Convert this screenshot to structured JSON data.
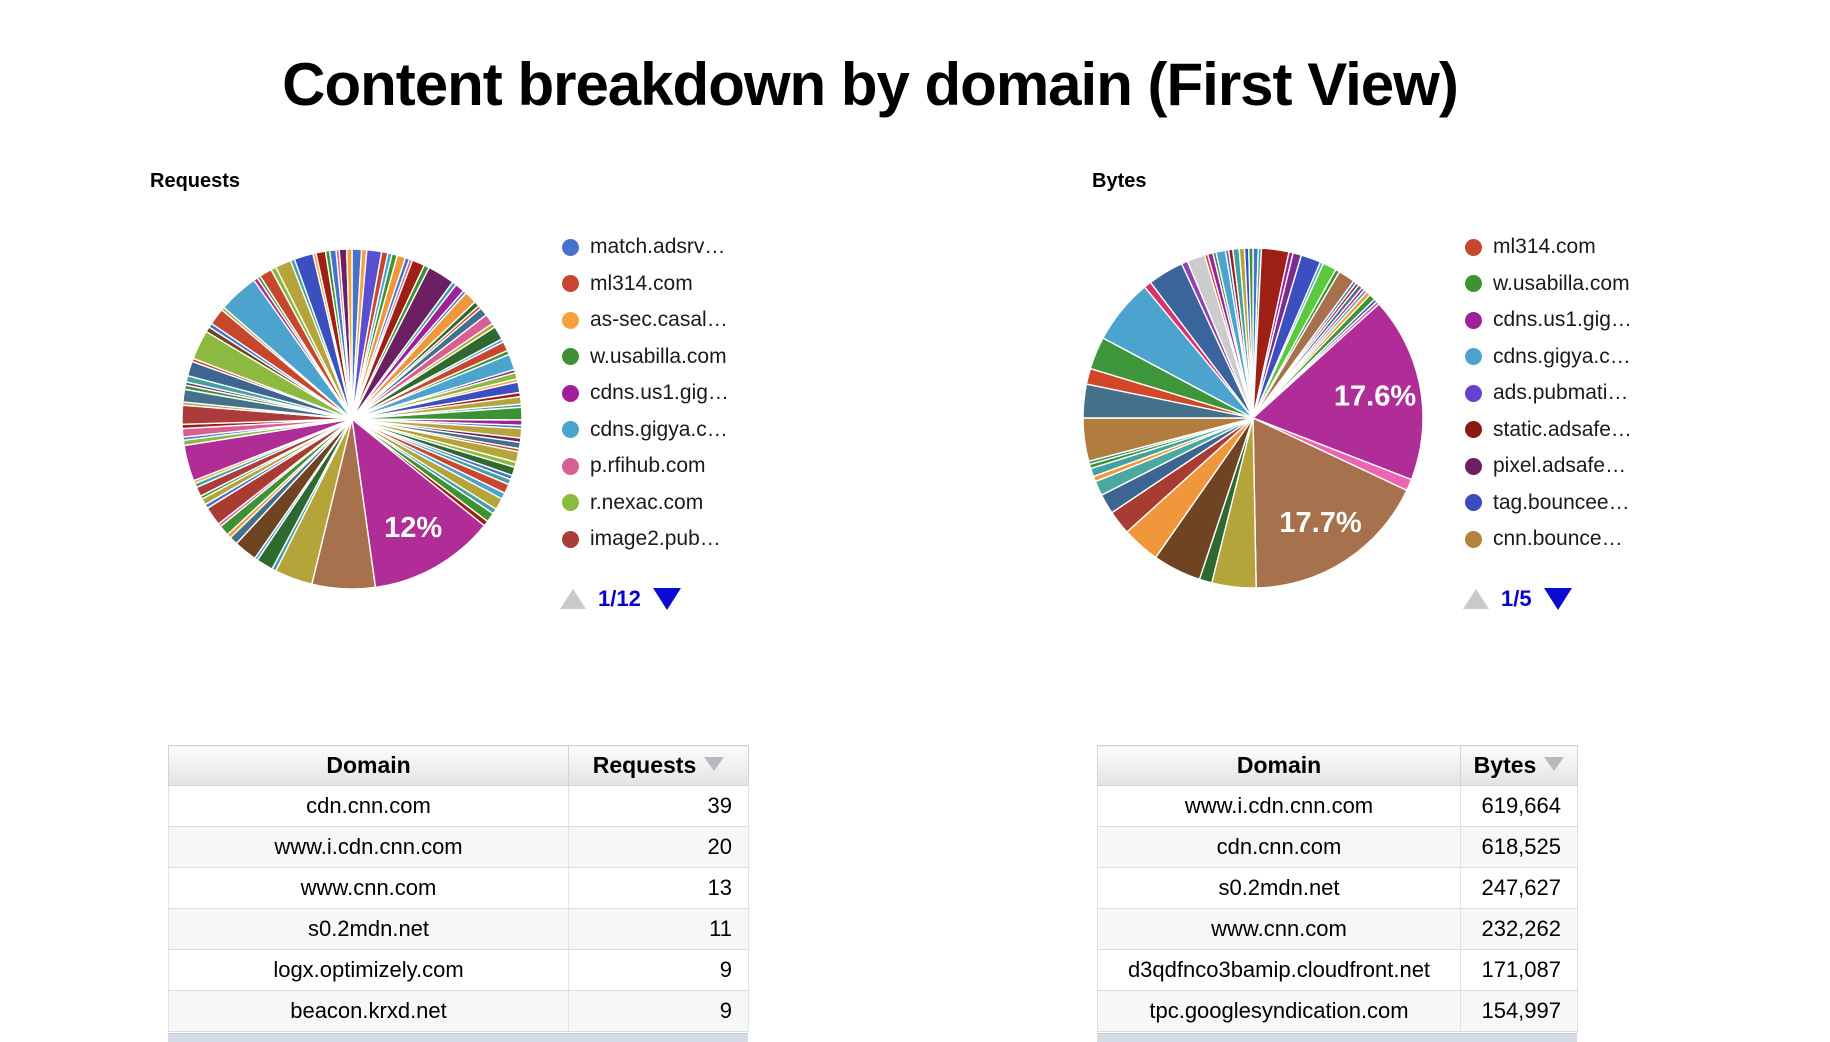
{
  "page_title": "Content breakdown by domain (First View)",
  "chart_data": [
    {
      "type": "pie",
      "title": "Requests",
      "legend_position": "right",
      "pagination": "1/12",
      "legend": [
        {
          "label": "match.adsrv…",
          "color": "#4673C9"
        },
        {
          "label": "ml314.com",
          "color": "#C6472E"
        },
        {
          "label": "as-sec.casal…",
          "color": "#F5A23C"
        },
        {
          "label": "w.usabilla.com",
          "color": "#3D9334"
        },
        {
          "label": "cdns.us1.gig…",
          "color": "#A02099"
        },
        {
          "label": "cdns.gigya.c…",
          "color": "#4BA3CE"
        },
        {
          "label": "p.rfihub.com",
          "color": "#D85E93"
        },
        {
          "label": "r.nexac.com",
          "color": "#8CBA41"
        },
        {
          "label": "image2.pub…",
          "color": "#AC3C3C"
        }
      ],
      "labeled_values": [
        {
          "label": "12%",
          "value": 12.0,
          "color": "#B02C96"
        }
      ],
      "slices": [
        [
          0.9,
          "#4673C9"
        ],
        [
          0.5,
          "#F5A23C"
        ],
        [
          1.4,
          "#5A4FD0"
        ],
        [
          0.6,
          "#C6472E"
        ],
        [
          0.4,
          "#4BA3CE"
        ],
        [
          0.5,
          "#3D9334"
        ],
        [
          0.8,
          "#F0973B"
        ],
        [
          0.4,
          "#4673C9"
        ],
        [
          0.3,
          "#D85E93"
        ],
        [
          1.2,
          "#9E1F14"
        ],
        [
          0.5,
          "#3D9334"
        ],
        [
          2.6,
          "#6C2063"
        ],
        [
          0.4,
          "#45A1A0"
        ],
        [
          0.9,
          "#A02099"
        ],
        [
          0.3,
          "#4673C9"
        ],
        [
          1.2,
          "#F0973B"
        ],
        [
          0.5,
          "#2E6930"
        ],
        [
          0.3,
          "#C6472E"
        ],
        [
          0.8,
          "#44708C"
        ],
        [
          1.0,
          "#D85E93"
        ],
        [
          0.4,
          "#B5A439"
        ],
        [
          1.3,
          "#2E6930"
        ],
        [
          0.3,
          "#4BA3CE"
        ],
        [
          0.9,
          "#C6472E"
        ],
        [
          0.4,
          "#3D9334"
        ],
        [
          1.5,
          "#4BA3CE"
        ],
        [
          0.3,
          "#7B2D8E"
        ],
        [
          0.6,
          "#8CBA41"
        ],
        [
          0.3,
          "#F5A23C"
        ],
        [
          1.0,
          "#3B4FC0"
        ],
        [
          0.4,
          "#9E1F14"
        ],
        [
          0.7,
          "#B5A439"
        ],
        [
          0.3,
          "#45A1A0"
        ],
        [
          1.2,
          "#3D9334"
        ],
        [
          0.5,
          "#A02099"
        ],
        [
          0.3,
          "#4673C9"
        ],
        [
          0.9,
          "#B5A439"
        ],
        [
          0.4,
          "#6C2063"
        ],
        [
          0.6,
          "#44708C"
        ],
        [
          0.3,
          "#C6472E"
        ],
        [
          1.0,
          "#B5A439"
        ],
        [
          0.5,
          "#8CBA41"
        ],
        [
          0.8,
          "#2E6930"
        ],
        [
          0.4,
          "#4673C9"
        ],
        [
          0.5,
          "#45A1A0"
        ],
        [
          0.9,
          "#C6472E"
        ],
        [
          0.6,
          "#4BA3CE"
        ],
        [
          1.1,
          "#B5A439"
        ],
        [
          0.5,
          "#45A1A0"
        ],
        [
          0.9,
          "#3D9334"
        ],
        [
          0.5,
          "#9E1F14"
        ],
        [
          12.0,
          "#B02C96",
          "12%"
        ],
        [
          6.0,
          "#A6714C"
        ],
        [
          3.6,
          "#B5A439"
        ],
        [
          0.4,
          "#45A1A0"
        ],
        [
          1.6,
          "#2E6930"
        ],
        [
          0.3,
          "#4BA3CE"
        ],
        [
          2.2,
          "#6E4423"
        ],
        [
          0.8,
          "#44708C"
        ],
        [
          0.4,
          "#F0973B"
        ],
        [
          1.0,
          "#3D9334"
        ],
        [
          0.3,
          "#D85E93"
        ],
        [
          1.8,
          "#A83C32"
        ],
        [
          0.4,
          "#4673C9"
        ],
        [
          0.6,
          "#B5A439"
        ],
        [
          0.3,
          "#3D9334"
        ],
        [
          0.9,
          "#AC3C3C"
        ],
        [
          0.4,
          "#45A1A0"
        ],
        [
          0.3,
          "#F5A23C"
        ],
        [
          3.4,
          "#B02C96"
        ],
        [
          0.5,
          "#8CBA41"
        ],
        [
          0.3,
          "#4673C9"
        ],
        [
          0.8,
          "#D85E93"
        ],
        [
          0.4,
          "#9E1F14"
        ],
        [
          1.8,
          "#AC3C3C"
        ],
        [
          0.3,
          "#B5A439"
        ],
        [
          1.2,
          "#44708C"
        ],
        [
          0.4,
          "#3D9334"
        ],
        [
          0.3,
          "#7B2D8E"
        ],
        [
          0.6,
          "#45A1A0"
        ],
        [
          1.4,
          "#3C6591"
        ],
        [
          0.3,
          "#C6472E"
        ],
        [
          2.8,
          "#8CBA41"
        ],
        [
          0.5,
          "#6E4423"
        ],
        [
          0.4,
          "#4673C9"
        ],
        [
          1.6,
          "#C6472E"
        ],
        [
          0.3,
          "#B5A439"
        ],
        [
          3.8,
          "#4BA3CE"
        ],
        [
          0.4,
          "#B02C96"
        ],
        [
          0.3,
          "#3D9334"
        ],
        [
          1.2,
          "#C6472E"
        ],
        [
          0.5,
          "#8CBA41"
        ],
        [
          1.5,
          "#B5A439"
        ],
        [
          0.4,
          "#45A1A0"
        ],
        [
          1.8,
          "#3B4FC0"
        ],
        [
          0.3,
          "#F5A23C"
        ],
        [
          0.9,
          "#9E1F14"
        ],
        [
          0.4,
          "#3D9334"
        ],
        [
          0.6,
          "#4673C9"
        ],
        [
          0.3,
          "#D85E93"
        ],
        [
          0.7,
          "#6C2063"
        ],
        [
          0.5,
          "#F5A23C"
        ]
      ]
    },
    {
      "type": "pie",
      "title": "Bytes",
      "legend_position": "right",
      "pagination": "1/5",
      "legend": [
        {
          "label": "ml314.com",
          "color": "#C6472E"
        },
        {
          "label": "w.usabilla.com",
          "color": "#3D9334"
        },
        {
          "label": "cdns.us1.gig…",
          "color": "#A02099"
        },
        {
          "label": "cdns.gigya.c…",
          "color": "#4BA3CE"
        },
        {
          "label": "ads.pubmati…",
          "color": "#6742D0"
        },
        {
          "label": "static.adsafe…",
          "color": "#8C180F"
        },
        {
          "label": "pixel.adsafe…",
          "color": "#6C2063"
        },
        {
          "label": "tag.bouncee…",
          "color": "#3A4CBE"
        },
        {
          "label": "cnn.bounce…",
          "color": "#B5823C"
        }
      ],
      "labeled_values": [
        {
          "label": "17.6%",
          "value": 17.6,
          "color": "#B02C96"
        },
        {
          "label": "17.7%",
          "value": 17.7,
          "color": "#A6714C"
        }
      ],
      "slices": [
        [
          0.5,
          "#4673C9"
        ],
        [
          0.3,
          "#45A1A0"
        ],
        [
          2.6,
          "#9E1F14"
        ],
        [
          0.4,
          "#A02099"
        ],
        [
          0.8,
          "#7B2D8E"
        ],
        [
          1.9,
          "#3B4FC0"
        ],
        [
          0.3,
          "#4BA3CE"
        ],
        [
          1.3,
          "#5BC83E"
        ],
        [
          0.4,
          "#3D9334"
        ],
        [
          1.6,
          "#A6714C"
        ],
        [
          0.3,
          "#4673C9"
        ],
        [
          0.3,
          "#9E1F14"
        ],
        [
          0.4,
          "#44708C"
        ],
        [
          0.3,
          "#B02C96"
        ],
        [
          0.3,
          "#45A1A0"
        ],
        [
          0.4,
          "#F0973B"
        ],
        [
          0.6,
          "#3D9334"
        ],
        [
          0.3,
          "#3B4FC0"
        ],
        [
          0.3,
          "#D85E93"
        ],
        [
          17.6,
          "#B02C96",
          "17.6%"
        ],
        [
          1.1,
          "#ED64B2"
        ],
        [
          17.7,
          "#A6714C",
          "17.7%"
        ],
        [
          4.2,
          "#B5A439"
        ],
        [
          1.2,
          "#2E6930"
        ],
        [
          4.6,
          "#6E4423"
        ],
        [
          3.6,
          "#F0973B"
        ],
        [
          2.3,
          "#A83C32"
        ],
        [
          1.9,
          "#3C6591"
        ],
        [
          1.4,
          "#4AA8A0"
        ],
        [
          0.5,
          "#F0973B"
        ],
        [
          0.8,
          "#45A1A0"
        ],
        [
          0.4,
          "#3D9334"
        ],
        [
          0.3,
          "#2E8B74"
        ],
        [
          4.1,
          "#B07D3F"
        ],
        [
          3.2,
          "#44708C"
        ],
        [
          1.5,
          "#D14727"
        ],
        [
          3.1,
          "#3D9639"
        ],
        [
          6.2,
          "#4BA3CE"
        ],
        [
          0.7,
          "#D6336C"
        ],
        [
          3.4,
          "#3A649B"
        ],
        [
          0.6,
          "#8E44AD"
        ],
        [
          1.7,
          "#CCCCCC"
        ],
        [
          0.3,
          "#C6472E"
        ],
        [
          0.5,
          "#A02099"
        ],
        [
          0.3,
          "#3D9334"
        ],
        [
          0.9,
          "#4BA3CE"
        ],
        [
          0.3,
          "#4673C9"
        ],
        [
          0.4,
          "#9E1F14"
        ],
        [
          0.6,
          "#45A1A0"
        ],
        [
          0.5,
          "#B5A439"
        ],
        [
          0.4,
          "#3B4FC0"
        ],
        [
          0.4,
          "#3D9334"
        ]
      ]
    }
  ],
  "tables": {
    "requests": {
      "headers": [
        "Domain",
        "Requests"
      ],
      "rows": [
        [
          "cdn.cnn.com",
          "39"
        ],
        [
          "www.i.cdn.cnn.com",
          "20"
        ],
        [
          "www.cnn.com",
          "13"
        ],
        [
          "s0.2mdn.net",
          "11"
        ],
        [
          "logx.optimizely.com",
          "9"
        ],
        [
          "beacon.krxd.net",
          "9"
        ]
      ]
    },
    "bytes": {
      "headers": [
        "Domain",
        "Bytes"
      ],
      "rows": [
        [
          "www.i.cdn.cnn.com",
          "619,664"
        ],
        [
          "cdn.cnn.com",
          "618,525"
        ],
        [
          "s0.2mdn.net",
          "247,627"
        ],
        [
          "www.cnn.com",
          "232,262"
        ],
        [
          "d3qdfnco3bamip.cloudfront.net",
          "171,087"
        ],
        [
          "tpc.googlesyndication.com",
          "154,997"
        ]
      ]
    }
  },
  "colors": {
    "pager_text": "#0404cc",
    "pager_next": "#0b0bd2",
    "pager_prev_disabled": "#c9c9c9",
    "sort_icon": "#b6babe",
    "big_magenta": "#B02C96",
    "big_brown": "#A6714C"
  }
}
